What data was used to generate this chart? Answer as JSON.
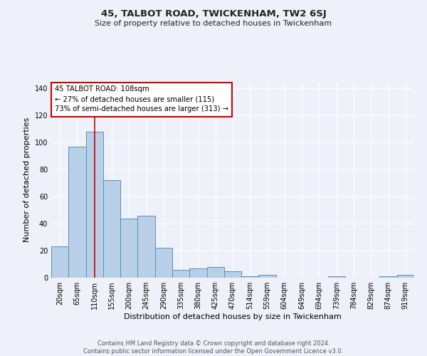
{
  "title": "45, TALBOT ROAD, TWICKENHAM, TW2 6SJ",
  "subtitle": "Size of property relative to detached houses in Twickenham",
  "xlabel": "Distribution of detached houses by size in Twickenham",
  "ylabel": "Number of detached properties",
  "categories": [
    "20sqm",
    "65sqm",
    "110sqm",
    "155sqm",
    "200sqm",
    "245sqm",
    "290sqm",
    "335sqm",
    "380sqm",
    "425sqm",
    "470sqm",
    "514sqm",
    "559sqm",
    "604sqm",
    "649sqm",
    "694sqm",
    "739sqm",
    "784sqm",
    "829sqm",
    "874sqm",
    "919sqm"
  ],
  "values": [
    23,
    97,
    108,
    72,
    44,
    46,
    22,
    6,
    7,
    8,
    5,
    1,
    2,
    0,
    0,
    0,
    1,
    0,
    0,
    1,
    2
  ],
  "bar_color": "#b8cfe8",
  "bar_edge_color": "#5b8db8",
  "background_color": "#eef1fa",
  "grid_color": "#ffffff",
  "annotation_text_line1": "45 TALBOT ROAD: 108sqm",
  "annotation_text_line2": "← 27% of detached houses are smaller (115)",
  "annotation_text_line3": "73% of semi-detached houses are larger (313) →",
  "annotation_box_color": "#ffffff",
  "annotation_box_edge_color": "#cc0000",
  "red_line_color": "#cc0000",
  "ylim": [
    0,
    145
  ],
  "footer_line1": "Contains HM Land Registry data © Crown copyright and database right 2024.",
  "footer_line2": "Contains public sector information licensed under the Open Government Licence v3.0."
}
